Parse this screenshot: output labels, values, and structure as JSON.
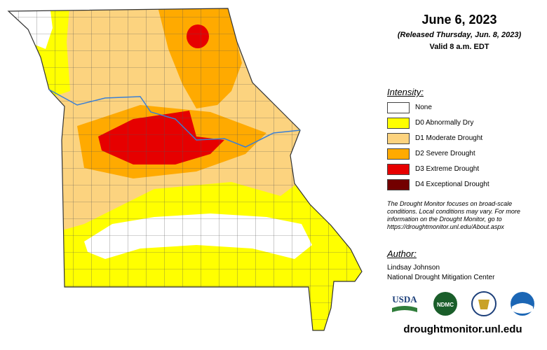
{
  "header": {
    "title": "June 6, 2023",
    "subtitle": "(Released Thursday, Jun. 8, 2023)",
    "valid": "Valid 8 a.m. EDT"
  },
  "legend": {
    "title": "Intensity:",
    "items": [
      {
        "label": "None",
        "color": "#ffffff"
      },
      {
        "label": "D0 Abnormally Dry",
        "color": "#ffff00"
      },
      {
        "label": "D1 Moderate Drought",
        "color": "#fcd37f"
      },
      {
        "label": "D2 Severe Drought",
        "color": "#ffaa00"
      },
      {
        "label": "D3 Extreme Drought",
        "color": "#e60000"
      },
      {
        "label": "D4 Exceptional Drought",
        "color": "#730000"
      }
    ]
  },
  "note": "The Drought Monitor focuses on broad-scale conditions. Local conditions may vary. For more information on the Drought Monitor, go to https://droughtmonitor.unl.edu/About.aspx",
  "author": {
    "heading": "Author:",
    "name": "Lindsay Johnson",
    "org": "National Drought Mitigation Center"
  },
  "logos": {
    "usda": "USDA",
    "ndmc": "NDMC"
  },
  "footer": {
    "url": "droughtmonitor.unl.edu"
  }
}
